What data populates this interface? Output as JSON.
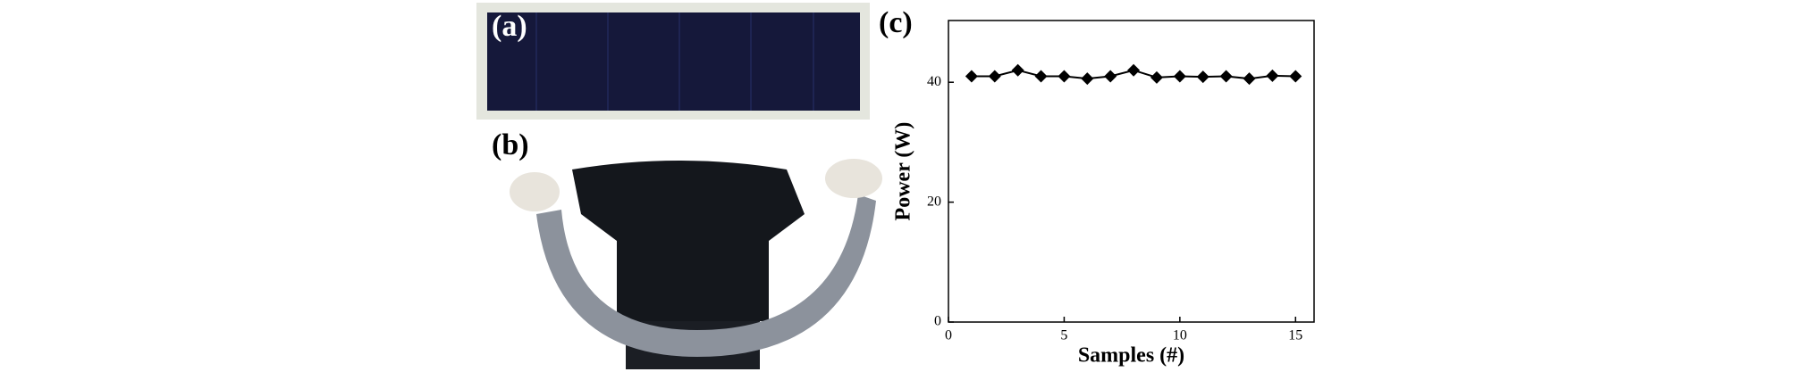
{
  "panel_labels": [
    "(a)",
    "(b)"
  ],
  "chart_data": {
    "type": "line",
    "panel_label": "(c)",
    "x_label": "Samples (#)",
    "y_label": "Power (W)",
    "x": [
      1,
      2,
      3,
      4,
      5,
      6,
      7,
      8,
      9,
      10,
      11,
      12,
      13,
      14,
      15
    ],
    "series": [
      {
        "name": "Power",
        "color": "#000000",
        "values": [
          41,
          41,
          42,
          41,
          41,
          40.6,
          41,
          42,
          40.8,
          41,
          40.9,
          41,
          40.6,
          41.1,
          41
        ]
      }
    ],
    "xlim": [
      0,
      15.8
    ],
    "ylim": [
      0,
      50.3
    ],
    "xticks": [
      0,
      5,
      10,
      15
    ],
    "yticks": [
      0,
      20,
      40
    ],
    "marker": "diamond"
  }
}
